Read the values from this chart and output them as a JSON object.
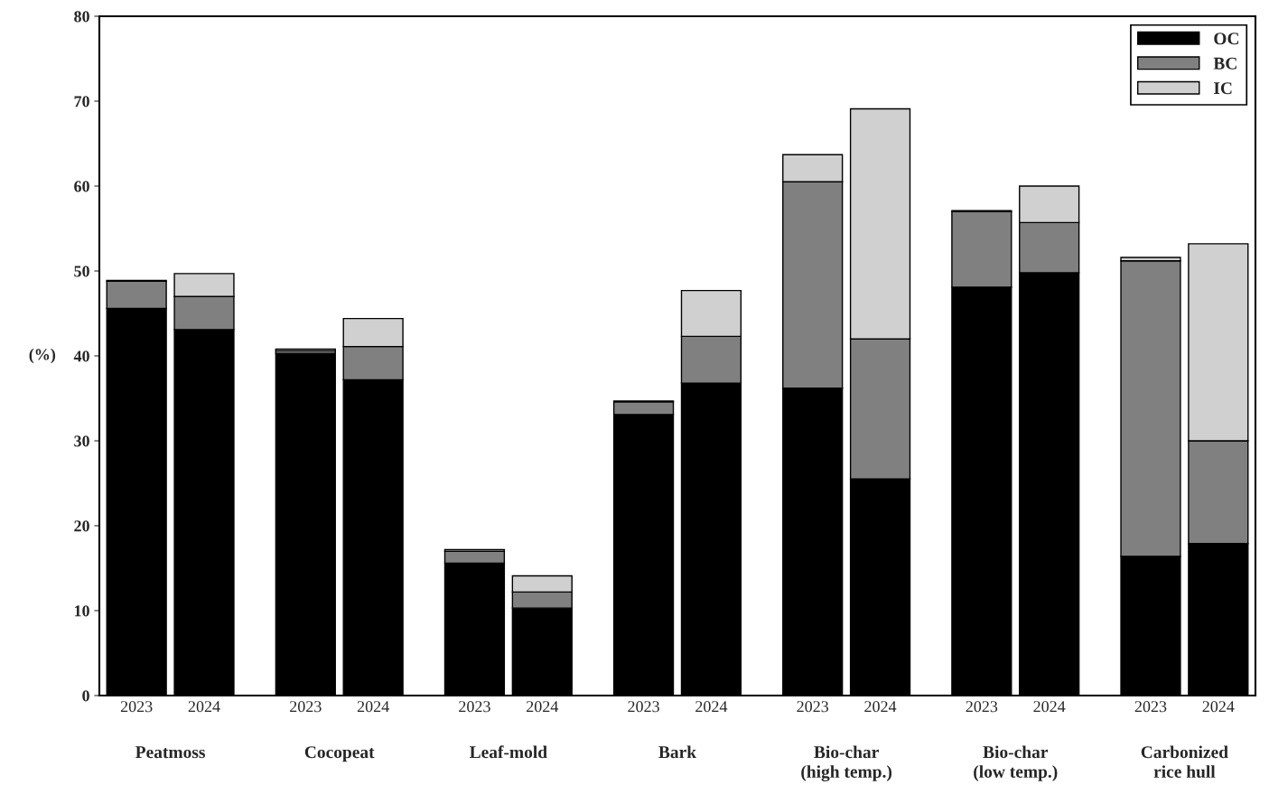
{
  "chart_data": {
    "type": "bar",
    "stacked": true,
    "categories": [
      "2023",
      "2024",
      "2023",
      "2024",
      "2023",
      "2024",
      "2023",
      "2024",
      "2023",
      "2024",
      "2023",
      "2024",
      "2023",
      "2024"
    ],
    "series": [
      {
        "name": "OC",
        "color": "#000000",
        "values": [
          45.6,
          43.1,
          40.3,
          37.2,
          15.6,
          10.3,
          33.1,
          36.8,
          36.2,
          25.5,
          48.1,
          49.8,
          16.4,
          17.9
        ]
      },
      {
        "name": "BC",
        "color": "#808080",
        "values": [
          3.2,
          3.9,
          0.3,
          3.9,
          1.4,
          1.9,
          1.5,
          5.5,
          24.3,
          16.5,
          8.9,
          5.9,
          34.8,
          12.1
        ]
      },
      {
        "name": "IC",
        "color": "#d0d0d0",
        "values": [
          0.1,
          2.7,
          0.2,
          3.3,
          0.2,
          1.9,
          0.1,
          5.4,
          3.2,
          27.1,
          0.1,
          4.3,
          0.4,
          23.2
        ]
      }
    ],
    "ylabel": "(%)",
    "ylim": [
      0,
      80
    ],
    "yticks": [
      0,
      10,
      20,
      30,
      40,
      50,
      60,
      70,
      80
    ],
    "annotations": [
      "Peatmoss",
      "Cocopeat",
      "Leaf-mold",
      "Bark",
      "Bio-char\n(high temp.)",
      "Bio-char\n(low temp.)",
      "Carbonized\nrice hull"
    ],
    "legend": "top right",
    "grid": false
  }
}
